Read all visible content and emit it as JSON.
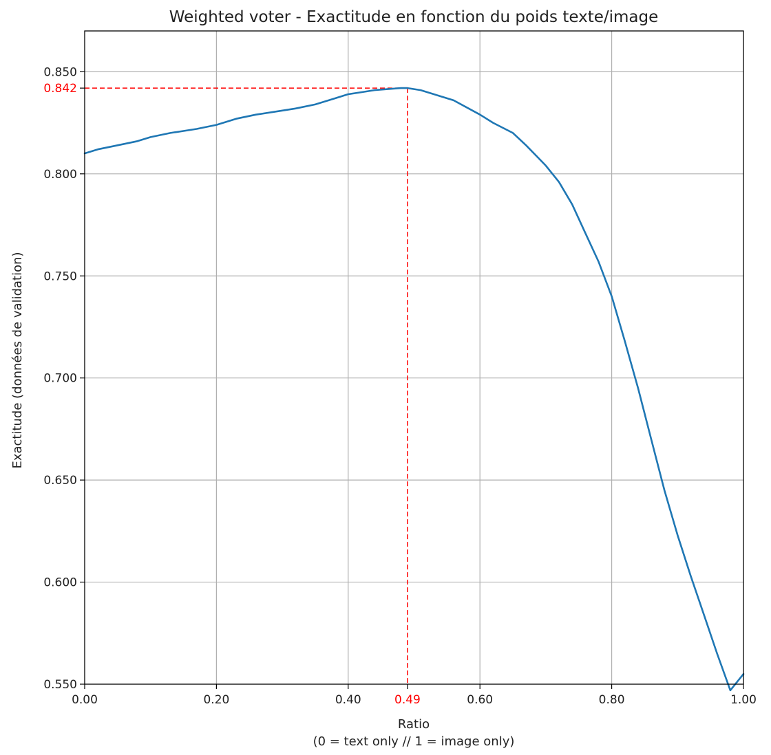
{
  "chart_data": {
    "type": "line",
    "title": "Weighted voter - Exactitude en fonction du poids texte/image",
    "xlabel": "Ratio",
    "xlabel_sub": "(0 = text only // 1 = image only)",
    "ylabel": "Exactitude (données de validation)",
    "xlim": [
      0,
      1
    ],
    "ylim": [
      0.55,
      0.87
    ],
    "x_ticks": [
      0.0,
      0.2,
      0.4,
      0.6,
      0.8,
      1.0
    ],
    "x_tick_labels": [
      "0.00",
      "0.20",
      "0.40",
      "0.60",
      "0.80",
      "1.00"
    ],
    "y_ticks": [
      0.55,
      0.6,
      0.65,
      0.7,
      0.75,
      0.8,
      0.85
    ],
    "y_tick_labels": [
      "0.550",
      "0.600",
      "0.650",
      "0.700",
      "0.750",
      "0.800",
      "0.850"
    ],
    "grid": true,
    "series": [
      {
        "color": "#1f77b4",
        "x": [
          0.0,
          0.02,
          0.05,
          0.08,
          0.1,
          0.13,
          0.17,
          0.2,
          0.23,
          0.26,
          0.3,
          0.32,
          0.35,
          0.38,
          0.4,
          0.42,
          0.44,
          0.46,
          0.48,
          0.49,
          0.51,
          0.53,
          0.56,
          0.6,
          0.62,
          0.65,
          0.67,
          0.7,
          0.72,
          0.74,
          0.76,
          0.78,
          0.8,
          0.82,
          0.84,
          0.86,
          0.88,
          0.9,
          0.92,
          0.94,
          0.96,
          0.98,
          1.0
        ],
        "y": [
          0.81,
          0.812,
          0.814,
          0.816,
          0.818,
          0.82,
          0.822,
          0.824,
          0.827,
          0.829,
          0.831,
          0.832,
          0.834,
          0.837,
          0.839,
          0.84,
          0.841,
          0.8415,
          0.842,
          0.842,
          0.841,
          0.839,
          0.836,
          0.829,
          0.825,
          0.82,
          0.814,
          0.804,
          0.796,
          0.785,
          0.771,
          0.757,
          0.74,
          0.718,
          0.695,
          0.67,
          0.645,
          0.623,
          0.603,
          0.584,
          0.565,
          0.547,
          0.555
        ]
      }
    ],
    "highlight": {
      "color": "#ff0000",
      "x": 0.49,
      "y": 0.842,
      "x_label": "0.49",
      "y_label": "0.842"
    }
  }
}
